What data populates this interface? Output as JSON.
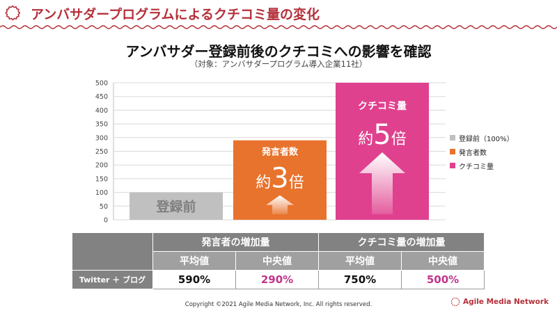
{
  "header": {
    "title": "アンバサダープログラムによるクチコミ量の変化",
    "accent_color": "#b5303a",
    "icon": "scalloped-badge-icon"
  },
  "chart_data": {
    "type": "bar",
    "title": "アンバサダー登録前後のクチコミへの影響を確認",
    "subtitle": "（対象：アンバサダープログラム導入企業11社）",
    "categories": [
      "登録前（100%）",
      "発言者数",
      "クチコミ量"
    ],
    "values": [
      100,
      290,
      500
    ],
    "colors": [
      "#c0c0c0",
      "#e8732c",
      "#e0418e"
    ],
    "ylim": [
      0,
      500
    ],
    "yticks": [
      "500",
      "450",
      "400",
      "350",
      "300",
      "250",
      "200",
      "150",
      "100",
      "50",
      "0"
    ],
    "grid": true,
    "legend_position": "right",
    "bar_labels": [
      {
        "label": "登録前",
        "multiplier_prefix": "",
        "multiplier_value": "",
        "multiplier_suffix": ""
      },
      {
        "label": "発言者数",
        "multiplier_prefix": "約",
        "multiplier_value": "3",
        "multiplier_suffix": "倍"
      },
      {
        "label": "クチコミ量",
        "multiplier_prefix": "約",
        "multiplier_value": "5",
        "multiplier_suffix": "倍"
      }
    ]
  },
  "table": {
    "group_headers": [
      "発言者の増加量",
      "クチコミ量の増加量"
    ],
    "sub_headers": [
      "平均値",
      "中央値",
      "平均値",
      "中央値"
    ],
    "row_label": "Twitter ＋ ブログ",
    "values": [
      "590%",
      "290%",
      "750%",
      "500%"
    ],
    "highlight_color": "#c0358a"
  },
  "footer": {
    "copyright": "Copyright ©2021 Agile Media Network, Inc. All rights reserved.",
    "brand": "Agile Media Network"
  }
}
